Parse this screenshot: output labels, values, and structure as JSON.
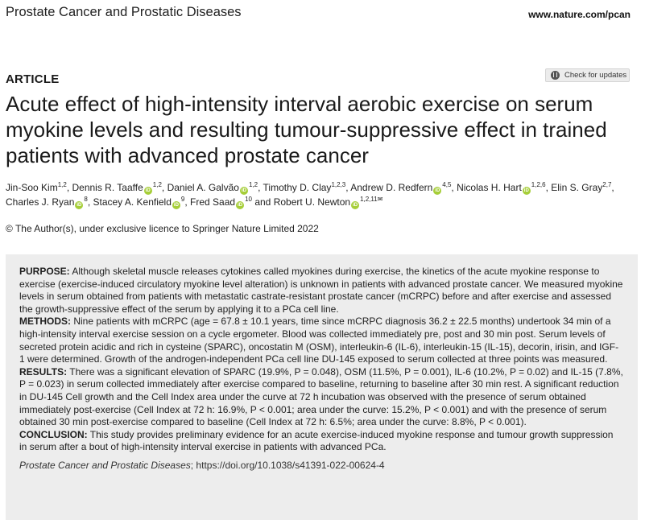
{
  "header": {
    "journal": "Prostate Cancer and Prostatic Diseases",
    "url": "www.nature.com/pcan"
  },
  "article_label": "ARTICLE",
  "check_updates": {
    "label": "Check for updates",
    "icon": "bookmark-check-icon"
  },
  "title": "Acute effect of high-intensity interval aerobic exercise on serum myokine levels and resulting tumour-suppressive effect in trained patients with advanced prostate cancer",
  "authors": [
    {
      "name": "Jin-Soo Kim",
      "aff": "1,2",
      "orcid": false,
      "sep": ", "
    },
    {
      "name": "Dennis R. Taaffe",
      "aff": "1,2",
      "orcid": true,
      "sep": ", "
    },
    {
      "name": "Daniel A. Galvão",
      "aff": "1,2",
      "orcid": true,
      "sep": ", "
    },
    {
      "name": "Timothy D. Clay",
      "aff": "1,2,3",
      "orcid": false,
      "sep": ", "
    },
    {
      "name": "Andrew D. Redfern",
      "aff": "4,5",
      "orcid": true,
      "sep": ", "
    },
    {
      "name": "Nicolas H. Hart",
      "aff": "1,2,6",
      "orcid": true,
      "sep": ", "
    },
    {
      "name": "Elin S. Gray",
      "aff": "2,7",
      "orcid": false,
      "sep": ", "
    },
    {
      "name": "Charles J. Ryan",
      "aff": "8",
      "orcid": true,
      "sep": ", "
    },
    {
      "name": "Stacey A. Kenfield",
      "aff": "9",
      "orcid": true,
      "sep": ", "
    },
    {
      "name": "Fred Saad",
      "aff": "10",
      "orcid": true,
      "sep": " and "
    },
    {
      "name": "Robert U. Newton",
      "aff": "1,2,11",
      "orcid": true,
      "sep": "",
      "corresponding": true
    }
  ],
  "orcid_badge": "iD",
  "corresponding_symbol": "✉",
  "copyright": "© The Author(s), under exclusive licence to Springer Nature Limited 2022",
  "abstract": {
    "purpose_label": "PURPOSE:",
    "purpose": "Although skeletal muscle releases cytokines called myokines during exercise, the kinetics of the acute myokine response to exercise (exercise-induced circulatory myokine level alteration) is unknown in patients with advanced prostate cancer. We measured myokine levels in serum obtained from patients with metastatic castrate-resistant prostate cancer (mCRPC) before and after exercise and assessed the growth-suppressive effect of the serum by applying it to a PCa cell line.",
    "methods_label": "METHODS:",
    "methods": "Nine patients with mCRPC (age = 67.8 ± 10.1 years, time since mCRPC diagnosis 36.2 ± 22.5 months) undertook 34 min of a high-intensity interval exercise session on a cycle ergometer. Blood was collected immediately pre, post and 30 min post. Serum levels of secreted protein acidic and rich in cysteine (SPARC), oncostatin M (OSM), interleukin-6 (IL-6), interleukin-15 (IL-15), decorin, irisin, and IGF-1 were determined. Growth of the androgen-independent PCa cell line DU-145 exposed to serum collected at three points was measured.",
    "results_label": "RESULTS:",
    "results": "There was a significant elevation of SPARC (19.9%, P = 0.048), OSM (11.5%, P = 0.001), IL-6 (10.2%, P = 0.02) and IL-15 (7.8%, P = 0.023) in serum collected immediately after exercise compared to baseline, returning to baseline after 30 min rest. A significant reduction in DU-145 Cell growth and the Cell Index area under the curve at 72 h incubation was observed with the presence of serum obtained immediately post-exercise (Cell Index at 72 h: 16.9%, P < 0.001; area under the curve: 15.2%, P < 0.001) and with the presence of serum obtained 30 min post-exercise compared to baseline (Cell Index at 72 h: 6.5%; area under the curve: 8.8%, P < 0.001).",
    "conclusion_label": "CONCLUSION:",
    "conclusion": "This study provides preliminary evidence for an acute exercise-induced myokine response and tumour growth suppression in serum after a bout of high-intensity interval exercise in patients with advanced PCa.",
    "citation_journal": "Prostate Cancer and Prostatic Diseases",
    "citation_rest": "; https://doi.org/10.1038/s41391-022-00624-4"
  },
  "colors": {
    "abstract_bg": "#ededed",
    "orcid_green": "#a6ce39"
  }
}
